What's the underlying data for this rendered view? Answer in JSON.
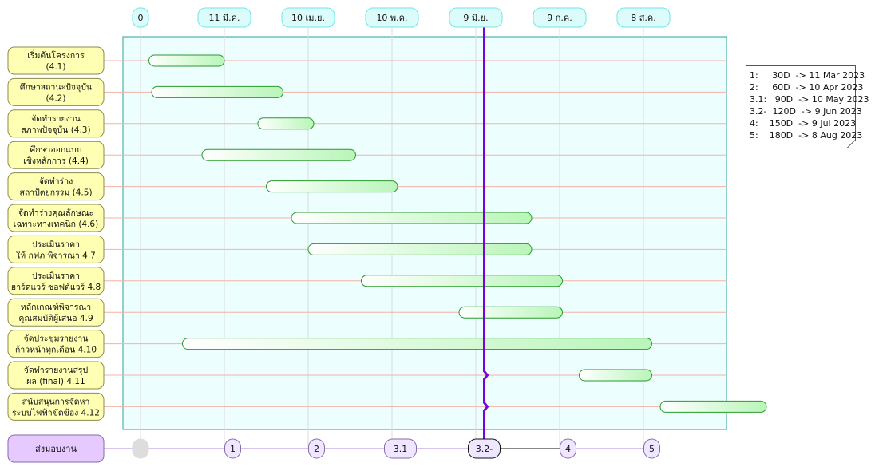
{
  "chart_data": {
    "type": "gantt",
    "date_ticks": [
      {
        "day": 0,
        "label": "0"
      },
      {
        "day": 30,
        "label": "11 มี.ค."
      },
      {
        "day": 60,
        "label": "10 เม.ย."
      },
      {
        "day": 90,
        "label": "10 พ.ค."
      },
      {
        "day": 120,
        "label": "9 มิ.ย."
      },
      {
        "day": 150,
        "label": "9 ก.ค."
      },
      {
        "day": 180,
        "label": "8 ส.ค."
      }
    ],
    "today_day": 123,
    "tasks": [
      {
        "line1": "เริ่มต้นโครงการ",
        "line2": "(4.1)",
        "start": 3,
        "end": 30
      },
      {
        "line1": "ศึกษาสถานะปัจจุบัน",
        "line2": "(4.2)",
        "start": 4,
        "end": 51
      },
      {
        "line1": "จัดทำรายงาน",
        "line2": "สภาพปัจจุบัน (4.3)",
        "start": 42,
        "end": 62
      },
      {
        "line1": "ศึกษาออกแบบ",
        "line2": "เชิงหลักการ (4.4)",
        "start": 22,
        "end": 77
      },
      {
        "line1": "จัดทำร่าง",
        "line2": "สถาปัตยกรรม (4.5)",
        "start": 45,
        "end": 92
      },
      {
        "line1": "จัดทำร่างคุณลักษณะ",
        "line2": "เฉพาะทางเทคนิก (4.6)",
        "start": 54,
        "end": 140
      },
      {
        "line1": "ประเมินราคา",
        "line2": "ให้ กฟภ พิจารณา 4.7",
        "start": 60,
        "end": 140
      },
      {
        "line1": "ประเมินราคา",
        "line2": "ฮาร์ดแวร์ ซอฟต์แวร์ 4.8",
        "start": 79,
        "end": 151
      },
      {
        "line1": "หลักเกณฑ์พิจารณา",
        "line2": "คุณสมบัติผู้เสนอ 4.9",
        "start": 114,
        "end": 151
      },
      {
        "line1": "จัดประชุมรายงาน",
        "line2": "ก้าวหน้าทุกเดือน 4.10",
        "start": 15,
        "end": 183
      },
      {
        "line1": "จัดทำรายงานสรุป",
        "line2": "ผล (final) 4.11",
        "start": 157,
        "end": 183
      },
      {
        "line1": "สนับสนุนการจัดหา",
        "line2": "ระบบไฟฟ้าขัดข้อง 4.12",
        "start": 186,
        "end": 224
      }
    ],
    "deliverables_label": "ส่งมอบงาน",
    "milestones": [
      {
        "label": "",
        "day": 0
      },
      {
        "label": "1",
        "day": 33
      },
      {
        "label": "2",
        "day": 63
      },
      {
        "label": "3.1",
        "day": 93
      },
      {
        "label": "3.2-",
        "day": 123
      },
      {
        "label": "4",
        "day": 153
      },
      {
        "label": "5",
        "day": 183
      }
    ],
    "legend": [
      "1:     30D  -> 11 Mar 2023",
      "2:     60D  -> 10 Apr 2023",
      "3.1:   90D  -> 10 May 2023",
      "3.2-  120D  -> 9 Jun 2023",
      "4:    150D  -> 9 Jul 2023",
      "5:    180D  -> 8 Aug 2023"
    ],
    "colors": {
      "task_box_fill": "#ffffb3",
      "task_box_stroke": "#8b8b4b",
      "bar_fill_start": "#ffffff",
      "bar_fill_end": "#b9f5b9",
      "bar_stroke": "#2a9a2a",
      "plot_bg": "#ecfefe",
      "plot_stroke": "#2aa198",
      "tick_fill": "#dcfcfc",
      "tick_stroke": "#6fe6e6",
      "today_line": "#7b00e0",
      "deliverable_fill": "#e6c9ff",
      "milestone_fill": "#efe6ff",
      "milestone_line": "#b28bdc",
      "row_line": "#f3b3a6"
    }
  }
}
